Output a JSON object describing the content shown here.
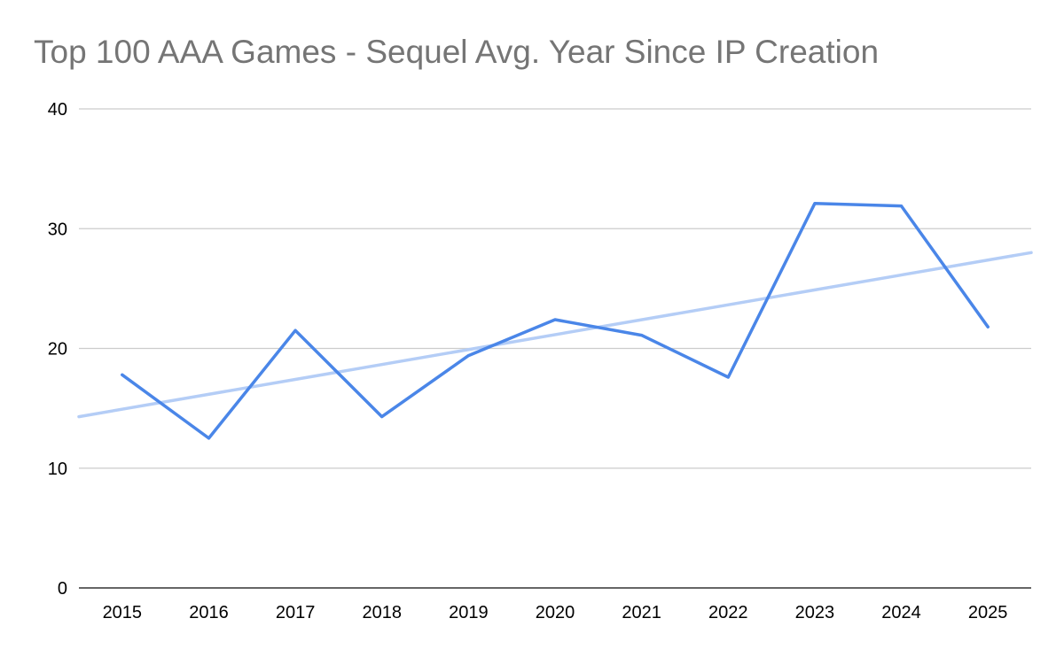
{
  "chart_data": {
    "type": "line",
    "title": "Top 100 AAA Games - Sequel Avg. Year Since IP Creation",
    "xlabel": "",
    "ylabel": "",
    "categories": [
      "2015",
      "2016",
      "2017",
      "2018",
      "2019",
      "2020",
      "2021",
      "2022",
      "2023",
      "2024",
      "2025"
    ],
    "series": [
      {
        "name": "Sequel Avg. Year Since IP Creation",
        "values": [
          17.8,
          12.5,
          21.5,
          14.3,
          19.4,
          22.4,
          21.1,
          17.6,
          32.1,
          31.9,
          21.8
        ],
        "color": "#4a86e8"
      }
    ],
    "trendline": {
      "type": "linear",
      "color": "#b4cdf6",
      "start_value": 14.3,
      "end_value": 28.0
    },
    "ylim": [
      0,
      40
    ],
    "yticks": [
      0,
      10,
      20,
      30,
      40
    ],
    "grid": true,
    "legend": "none"
  }
}
